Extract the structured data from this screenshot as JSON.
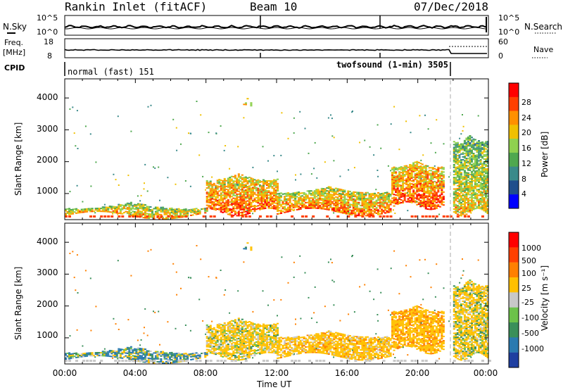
{
  "header": {
    "station": "Rankin Inlet (fitACF)",
    "beam": "Beam 10",
    "date": "07/Dec/2018"
  },
  "noise_panel": {
    "left_label": "N.Sky",
    "right_label": "N.Search",
    "ticks_left": [
      "10^5",
      "10^0"
    ],
    "ticks_right": [
      "10^5",
      "10^0"
    ]
  },
  "freq_panel": {
    "left_label_1": "Freq.",
    "left_label_2": "[MHz]",
    "right_label": "Nave",
    "ticks_left": [
      "18",
      "8"
    ],
    "ticks_right": [
      "60",
      "0"
    ]
  },
  "cpid": {
    "label": "CPID",
    "mode1": "normal (fast) 151",
    "mode2": "twofsound (1-min) 3505"
  },
  "power_panel": {
    "ylabel": "Slant Range [km]",
    "yticks": [
      "4000",
      "3000",
      "2000",
      "1000"
    ],
    "colorbar_label": "Power [dB]",
    "colorbar_ticks": [
      "28",
      "24",
      "20",
      "16",
      "12",
      "8",
      "4"
    ],
    "colors": [
      "#0000ff",
      "#1f4e8c",
      "#3a8a8a",
      "#4fa84f",
      "#8fd14f",
      "#f0c000",
      "#ff9000",
      "#ff4000",
      "#ff0000"
    ]
  },
  "velocity_panel": {
    "ylabel": "Slant Range [km]",
    "yticks": [
      "4000",
      "3000",
      "2000",
      "1000"
    ],
    "colorbar_label": "Velocity [m s⁻¹]",
    "colorbar_ticks": [
      "1000",
      "500",
      "100",
      "25",
      "-25",
      "-100",
      "-500",
      "-1000"
    ],
    "colors": [
      "#1f3fa0",
      "#2a7ab0",
      "#3a8f5a",
      "#6cc24a",
      "#c8c8c8",
      "#ffc000",
      "#ff8000",
      "#ff4000",
      "#ff0000"
    ]
  },
  "x_axis": {
    "ticks": [
      "00:00",
      "04:00",
      "08:00",
      "12:00",
      "16:00",
      "20:00",
      "00:00"
    ],
    "label": "Time UT"
  },
  "chart_data": {
    "type": "heatmap",
    "title": "Rankin Inlet (fitACF)",
    "x_unit": "hours UT",
    "xlim": [
      0,
      24
    ],
    "ylim": [
      180,
      4600
    ],
    "power_range": [
      0,
      32
    ],
    "velocity_range": [
      -1000,
      1000
    ],
    "features": [
      {
        "name": "morning band",
        "t_start": 0.0,
        "t_end": 8.0,
        "range_low": 300,
        "range_high": 700,
        "power": 22,
        "velocity": 50
      },
      {
        "name": "main echo band",
        "t_start": 8.0,
        "t_end": 12.0,
        "range_low": 400,
        "range_high": 1600,
        "power": 26,
        "velocity": -200
      },
      {
        "name": "midday band",
        "t_start": 12.0,
        "t_end": 18.5,
        "range_low": 400,
        "range_high": 1200,
        "power": 25,
        "velocity": -300
      },
      {
        "name": "evening band",
        "t_start": 18.5,
        "t_end": 21.5,
        "range_low": 600,
        "range_high": 2000,
        "power": 27,
        "velocity": -400
      },
      {
        "name": "post-mode band",
        "t_start": 22.0,
        "t_end": 24.0,
        "range_low": 400,
        "range_high": 2800,
        "power": 20,
        "velocity": -150
      },
      {
        "name": "isolated patch",
        "t_start": 10.1,
        "t_end": 10.5,
        "range_low": 3850,
        "range_high": 4000,
        "power": 20,
        "velocity": -80
      }
    ]
  }
}
